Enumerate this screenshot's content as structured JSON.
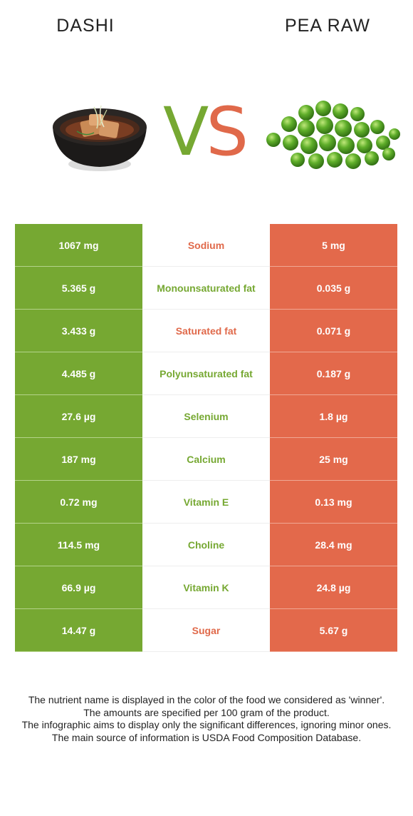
{
  "header": {
    "left_title": "DASHI",
    "right_title": "PEA RAW",
    "vs_v": "V",
    "vs_s": "S"
  },
  "colors": {
    "winner_left": "#76a832",
    "winner_right": "#e3694b"
  },
  "rows": [
    {
      "left": "1067 mg",
      "nutrient": "Sodium",
      "right": "5 mg",
      "winner": "right"
    },
    {
      "left": "5.365 g",
      "nutrient": "Monounsaturated fat",
      "right": "0.035 g",
      "winner": "left"
    },
    {
      "left": "3.433 g",
      "nutrient": "Saturated fat",
      "right": "0.071 g",
      "winner": "right"
    },
    {
      "left": "4.485 g",
      "nutrient": "Polyunsaturated fat",
      "right": "0.187 g",
      "winner": "left"
    },
    {
      "left": "27.6 µg",
      "nutrient": "Selenium",
      "right": "1.8 µg",
      "winner": "left"
    },
    {
      "left": "187 mg",
      "nutrient": "Calcium",
      "right": "25 mg",
      "winner": "left"
    },
    {
      "left": "0.72 mg",
      "nutrient": "Vitamin E",
      "right": "0.13 mg",
      "winner": "left"
    },
    {
      "left": "114.5 mg",
      "nutrient": "Choline",
      "right": "28.4 mg",
      "winner": "left"
    },
    {
      "left": "66.9 µg",
      "nutrient": "Vitamin K",
      "right": "24.8 µg",
      "winner": "left"
    },
    {
      "left": "14.47 g",
      "nutrient": "Sugar",
      "right": "5.67 g",
      "winner": "right"
    }
  ],
  "footnote": {
    "line1": "The nutrient name is displayed in the color of the food we considered as 'winner'.",
    "line2": "The amounts are specified per 100 gram of the product.",
    "line3": "The infographic aims to display only the significant differences, ignoring minor ones.",
    "line4": "The main source of information is USDA Food Composition Database."
  }
}
